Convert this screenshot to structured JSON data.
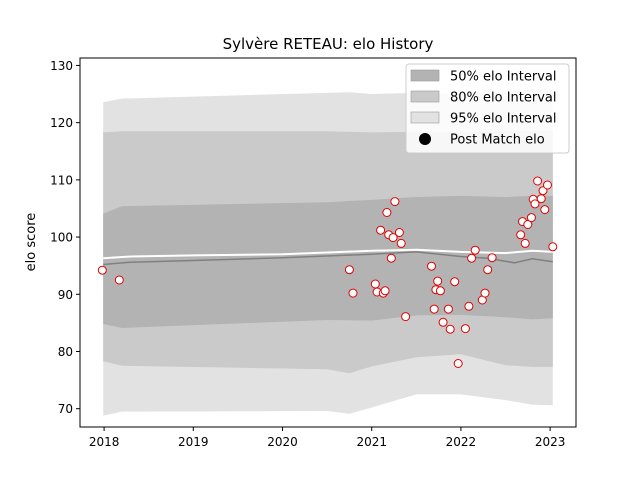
{
  "chart_data": {
    "type": "line",
    "title": "Sylvère RETEAU: elo History",
    "xlabel": "",
    "ylabel": "elo score",
    "xlim": [
      2017.73,
      2023.29
    ],
    "ylim": [
      66.8,
      131.3
    ],
    "x_ticks": [
      2018,
      2019,
      2020,
      2021,
      2022,
      2023
    ],
    "y_ticks": [
      70,
      80,
      90,
      100,
      110,
      120,
      130
    ],
    "grid": false,
    "legend_position": "top-right",
    "legend": [
      {
        "label": "50% elo Interval",
        "kind": "patch",
        "color": "#b3b3b3"
      },
      {
        "label": "80% elo Interval",
        "kind": "patch",
        "color": "#cacaca"
      },
      {
        "label": "95% elo Interval",
        "kind": "patch",
        "color": "#e2e2e2"
      },
      {
        "label": "Post Match elo",
        "kind": "marker",
        "color": "#000000"
      }
    ],
    "bands": [
      {
        "name": "95% elo Interval",
        "color": "#e2e2e2",
        "upper": [
          [
            2017.99,
            123.6
          ],
          [
            2018.2,
            124.2
          ],
          [
            2020.5,
            125.2
          ],
          [
            2020.75,
            125.3
          ],
          [
            2021.0,
            125.0
          ],
          [
            2021.5,
            125.2
          ],
          [
            2022.0,
            125.0
          ],
          [
            2022.5,
            125.3
          ],
          [
            2022.8,
            125.8
          ],
          [
            2023.03,
            126.0
          ]
        ],
        "lower": [
          [
            2017.99,
            68.8
          ],
          [
            2018.2,
            69.5
          ],
          [
            2020.5,
            69.6
          ],
          [
            2020.75,
            69.1
          ],
          [
            2021.0,
            70.2
          ],
          [
            2021.5,
            72.5
          ],
          [
            2022.0,
            72.5
          ],
          [
            2022.5,
            71.5
          ],
          [
            2022.8,
            70.7
          ],
          [
            2023.03,
            70.6
          ]
        ]
      },
      {
        "name": "80% elo Interval",
        "color": "#cacaca",
        "upper": [
          [
            2017.99,
            118.3
          ],
          [
            2018.2,
            118.5
          ],
          [
            2020.5,
            118.5
          ],
          [
            2021.0,
            118.3
          ],
          [
            2021.5,
            118.4
          ],
          [
            2022.0,
            118.3
          ],
          [
            2022.5,
            118.6
          ],
          [
            2023.03,
            118.6
          ]
        ],
        "lower": [
          [
            2017.99,
            78.3
          ],
          [
            2018.2,
            77.5
          ],
          [
            2020.5,
            76.9
          ],
          [
            2020.75,
            76.2
          ],
          [
            2021.0,
            77.4
          ],
          [
            2021.5,
            79.0
          ],
          [
            2022.0,
            79.5
          ],
          [
            2022.5,
            77.6
          ],
          [
            2022.8,
            77.3
          ],
          [
            2023.03,
            77.3
          ]
        ]
      },
      {
        "name": "50% elo Interval",
        "color": "#b3b3b3",
        "upper": [
          [
            2017.99,
            104.1
          ],
          [
            2018.2,
            105.4
          ],
          [
            2020.5,
            106.1
          ],
          [
            2020.75,
            106.3
          ],
          [
            2021.0,
            106.5
          ],
          [
            2021.5,
            107.0
          ],
          [
            2022.0,
            107.2
          ],
          [
            2022.5,
            107.0
          ],
          [
            2022.8,
            107.2
          ],
          [
            2023.03,
            107.2
          ]
        ],
        "lower": [
          [
            2017.99,
            84.8
          ],
          [
            2018.2,
            84.1
          ],
          [
            2020.5,
            85.5
          ],
          [
            2021.0,
            85.4
          ],
          [
            2021.5,
            86.3
          ],
          [
            2022.0,
            86.4
          ],
          [
            2022.5,
            86.0
          ],
          [
            2022.8,
            85.6
          ],
          [
            2023.03,
            85.8
          ]
        ]
      }
    ],
    "lines": [
      {
        "name": "mean",
        "color": "#ffffff",
        "width": 2,
        "points": [
          [
            2017.99,
            96.3
          ],
          [
            2018.3,
            96.6
          ],
          [
            2019.0,
            96.8
          ],
          [
            2020.0,
            97.0
          ],
          [
            2021.0,
            97.6
          ],
          [
            2021.5,
            97.8
          ],
          [
            2022.0,
            97.4
          ],
          [
            2022.5,
            97.2
          ],
          [
            2022.8,
            97.6
          ],
          [
            2023.03,
            97.4
          ]
        ]
      },
      {
        "name": "median",
        "color": "#808080",
        "width": 1.5,
        "points": [
          [
            2017.99,
            95.2
          ],
          [
            2018.3,
            95.6
          ],
          [
            2019.0,
            95.9
          ],
          [
            2020.0,
            96.4
          ],
          [
            2021.0,
            97.0
          ],
          [
            2021.5,
            97.4
          ],
          [
            2022.0,
            96.6
          ],
          [
            2022.3,
            96.3
          ],
          [
            2022.6,
            95.5
          ],
          [
            2022.8,
            96.2
          ],
          [
            2023.03,
            95.7
          ]
        ]
      }
    ],
    "scatter": {
      "name": "Post Match elo",
      "face_color": "#ffffff",
      "edge_color": "#e00000",
      "points": [
        [
          2017.98,
          94.2
        ],
        [
          2018.17,
          92.5
        ],
        [
          2020.75,
          94.3
        ],
        [
          2020.79,
          90.2
        ],
        [
          2021.04,
          91.8
        ],
        [
          2021.06,
          90.4
        ],
        [
          2021.1,
          101.2
        ],
        [
          2021.13,
          90.2
        ],
        [
          2021.15,
          90.6
        ],
        [
          2021.17,
          104.3
        ],
        [
          2021.19,
          100.4
        ],
        [
          2021.22,
          96.3
        ],
        [
          2021.24,
          99.9
        ],
        [
          2021.26,
          106.2
        ],
        [
          2021.31,
          100.8
        ],
        [
          2021.33,
          98.9
        ],
        [
          2021.38,
          86.1
        ],
        [
          2021.67,
          94.9
        ],
        [
          2021.7,
          87.4
        ],
        [
          2021.72,
          90.8
        ],
        [
          2021.74,
          92.3
        ],
        [
          2021.77,
          90.6
        ],
        [
          2021.8,
          85.1
        ],
        [
          2021.86,
          87.4
        ],
        [
          2021.88,
          83.9
        ],
        [
          2021.93,
          92.2
        ],
        [
          2021.97,
          77.9
        ],
        [
          2022.05,
          84.0
        ],
        [
          2022.09,
          87.9
        ],
        [
          2022.12,
          96.3
        ],
        [
          2022.16,
          97.7
        ],
        [
          2022.24,
          89.0
        ],
        [
          2022.27,
          90.2
        ],
        [
          2022.3,
          94.3
        ],
        [
          2022.35,
          96.4
        ],
        [
          2022.67,
          100.4
        ],
        [
          2022.69,
          102.7
        ],
        [
          2022.72,
          98.9
        ],
        [
          2022.75,
          102.2
        ],
        [
          2022.79,
          103.4
        ],
        [
          2022.81,
          106.6
        ],
        [
          2022.83,
          105.8
        ],
        [
          2022.86,
          109.8
        ],
        [
          2022.9,
          106.7
        ],
        [
          2022.92,
          108.1
        ],
        [
          2022.94,
          104.8
        ],
        [
          2022.97,
          109.1
        ],
        [
          2023.03,
          98.3
        ]
      ]
    }
  }
}
